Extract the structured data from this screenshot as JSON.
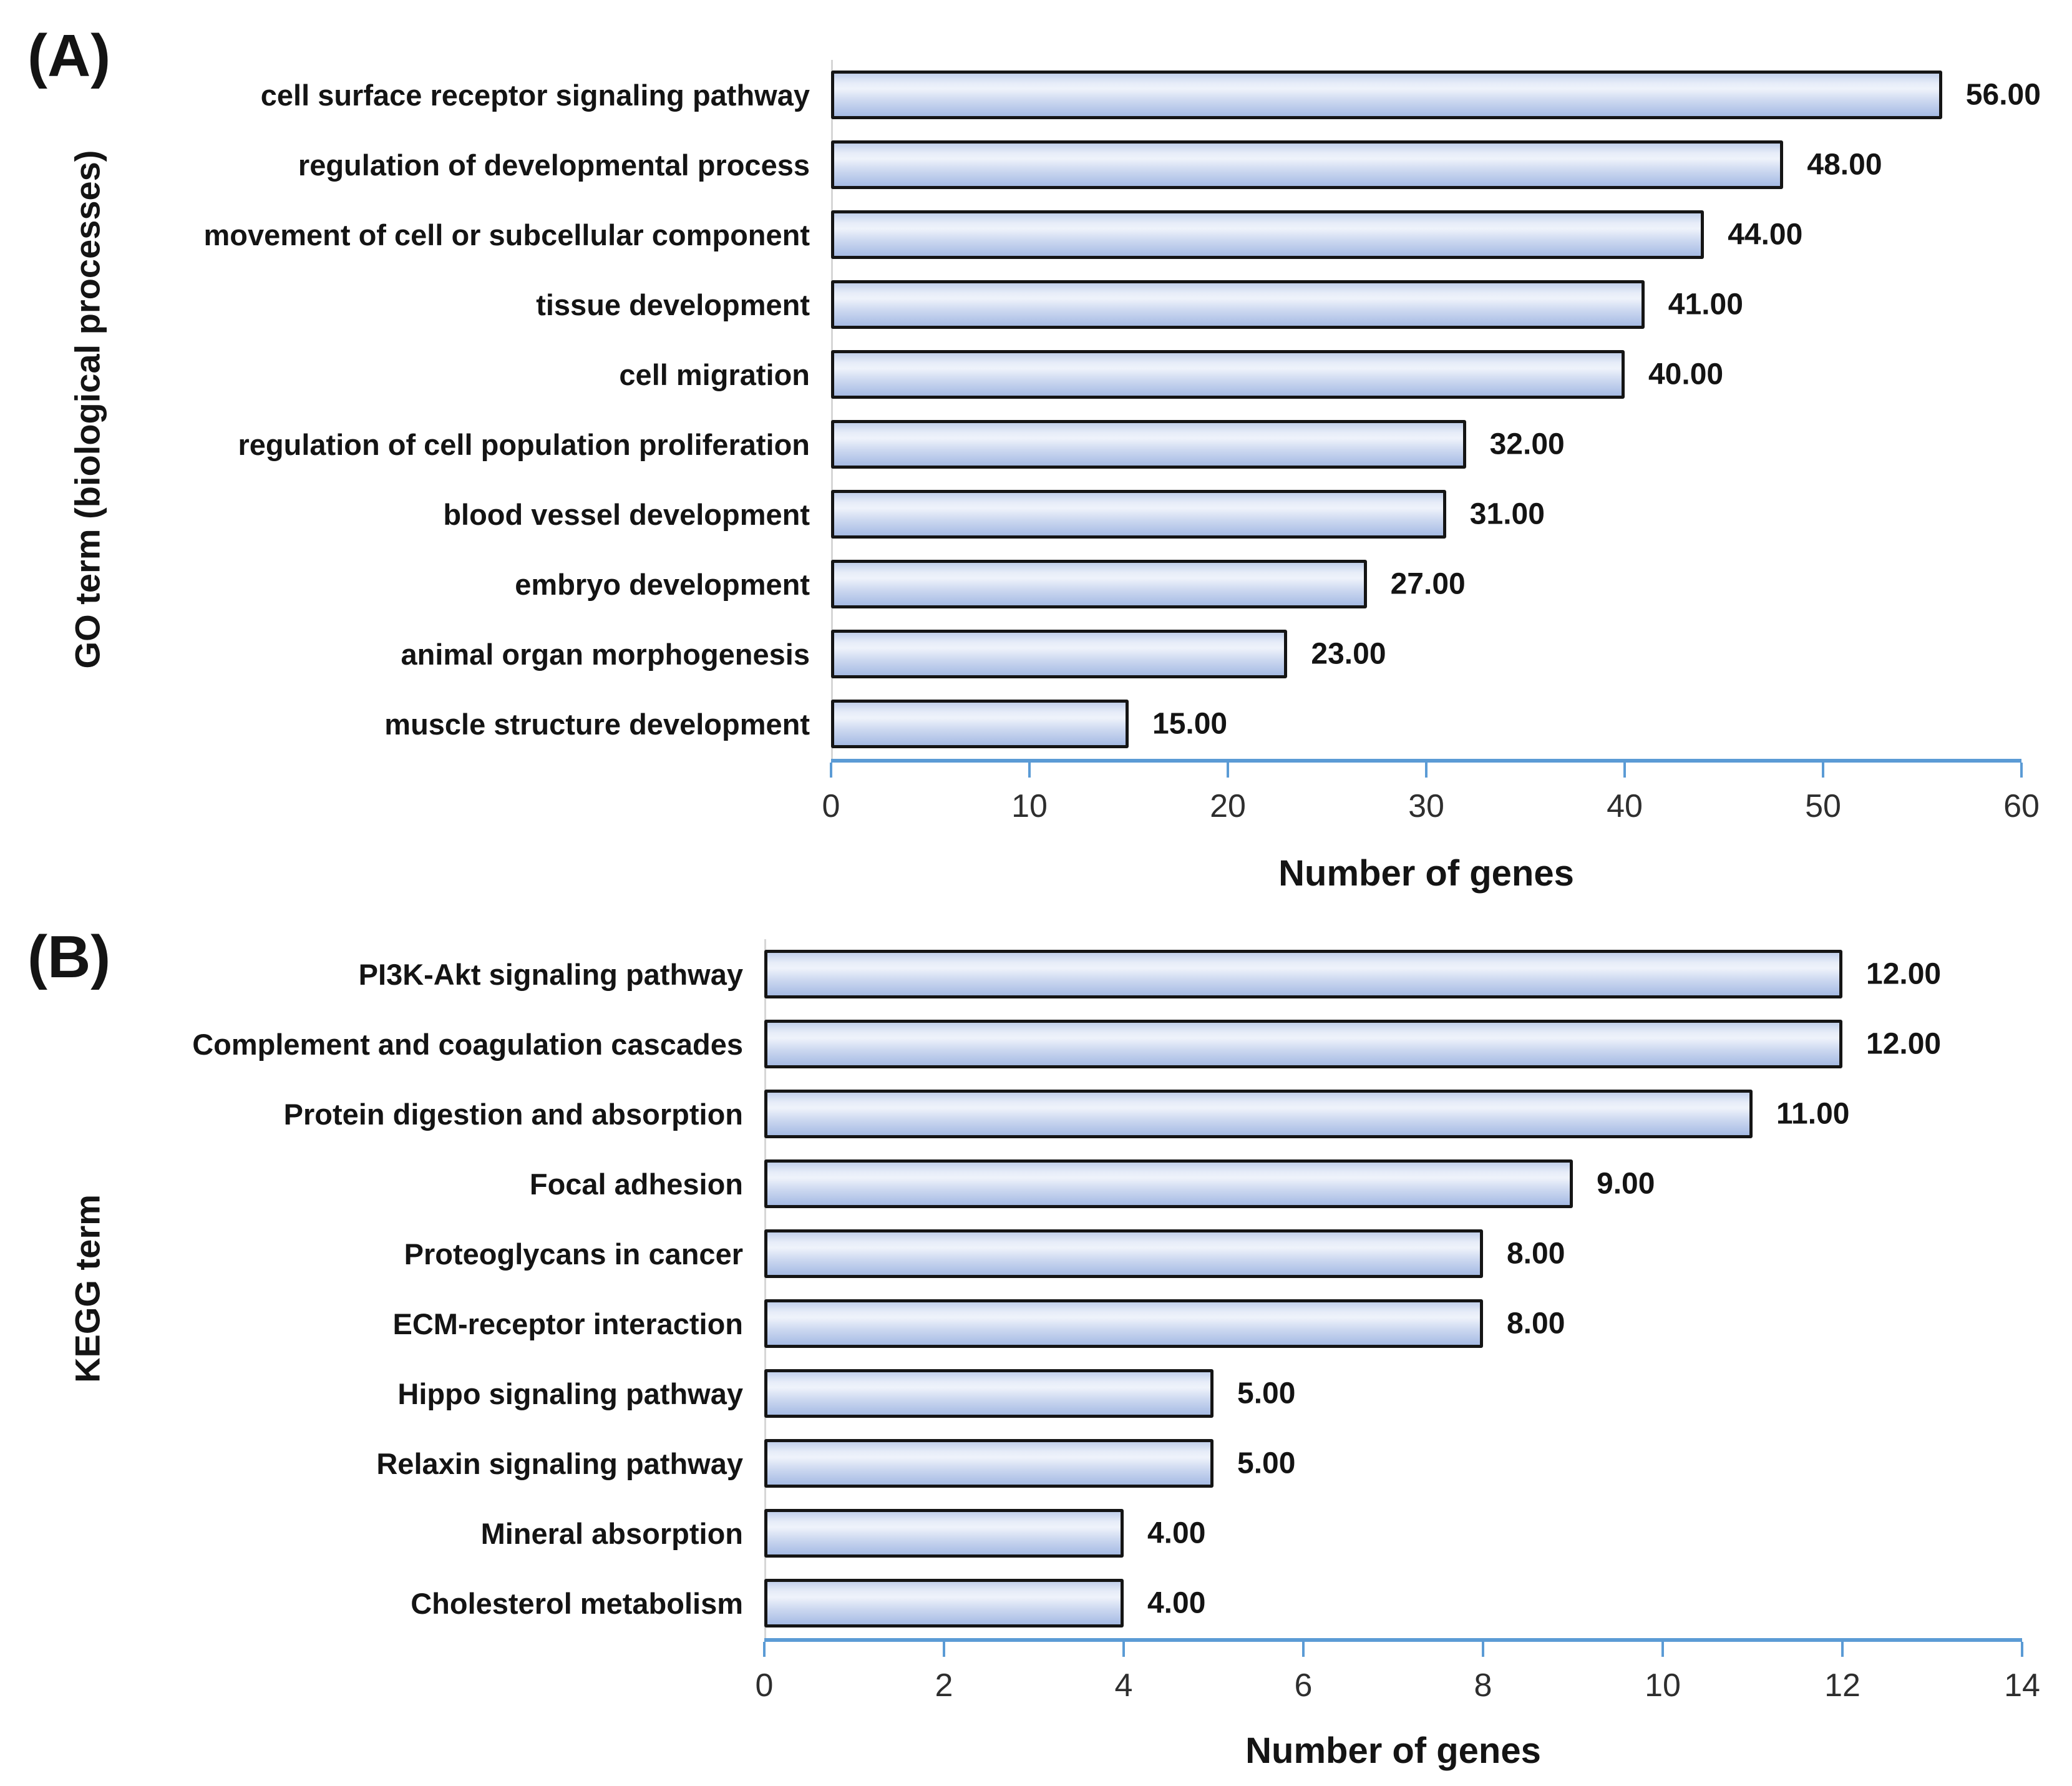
{
  "colors": {
    "axis_blue": "#5b9bd5",
    "bar_border": "#151515",
    "bar_gradient_top": "#c2d0eb",
    "bar_gradient_light": "#eff3fb",
    "bar_gradient_bottom": "#a6bbe4",
    "text": "#141414",
    "background": "#ffffff"
  },
  "chart_data": [
    {
      "panel_label": "(A)",
      "type": "bar",
      "orientation": "horizontal",
      "ylabel": "GO term (biological processes)",
      "xlabel": "Number of genes",
      "categories": [
        "cell surface receptor signaling pathway",
        "regulation of developmental process",
        "movement of cell or subcellular component",
        "tissue development",
        "cell migration",
        "regulation of cell population proliferation",
        "blood vessel development",
        "embryo development",
        "animal organ morphogenesis",
        "muscle structure development"
      ],
      "values": [
        56,
        48,
        44,
        41,
        40,
        32,
        31,
        27,
        23,
        15
      ],
      "value_labels": [
        "56.00",
        "48.00",
        "44.00",
        "41.00",
        "40.00",
        "32.00",
        "31.00",
        "27.00",
        "23.00",
        "15.00"
      ],
      "xlim": [
        0,
        60
      ],
      "xticks": [
        0,
        10,
        20,
        30,
        40,
        50,
        60
      ],
      "xtick_labels": [
        "0",
        "10",
        "20",
        "30",
        "40",
        "50",
        "60"
      ],
      "grid": false,
      "legend": null
    },
    {
      "panel_label": "(B)",
      "type": "bar",
      "orientation": "horizontal",
      "ylabel": "KEGG term",
      "xlabel": "Number of genes",
      "categories": [
        "PI3K-Akt signaling pathway",
        "Complement and coagulation cascades",
        "Protein digestion and absorption",
        "Focal adhesion",
        "Proteoglycans in cancer",
        "ECM-receptor interaction",
        "Hippo signaling pathway",
        "Relaxin signaling pathway",
        "Mineral absorption",
        "Cholesterol metabolism"
      ],
      "values": [
        12,
        12,
        11,
        9,
        8,
        8,
        5,
        5,
        4,
        4
      ],
      "value_labels": [
        "12.00",
        "12.00",
        "11.00",
        "9.00",
        "8.00",
        "8.00",
        "5.00",
        "5.00",
        "4.00",
        "4.00"
      ],
      "xlim": [
        0,
        14
      ],
      "xticks": [
        0,
        2,
        4,
        6,
        8,
        10,
        12,
        14
      ],
      "xtick_labels": [
        "0",
        "2",
        "4",
        "6",
        "8",
        "10",
        "12",
        "14"
      ],
      "grid": false,
      "legend": null
    }
  ]
}
